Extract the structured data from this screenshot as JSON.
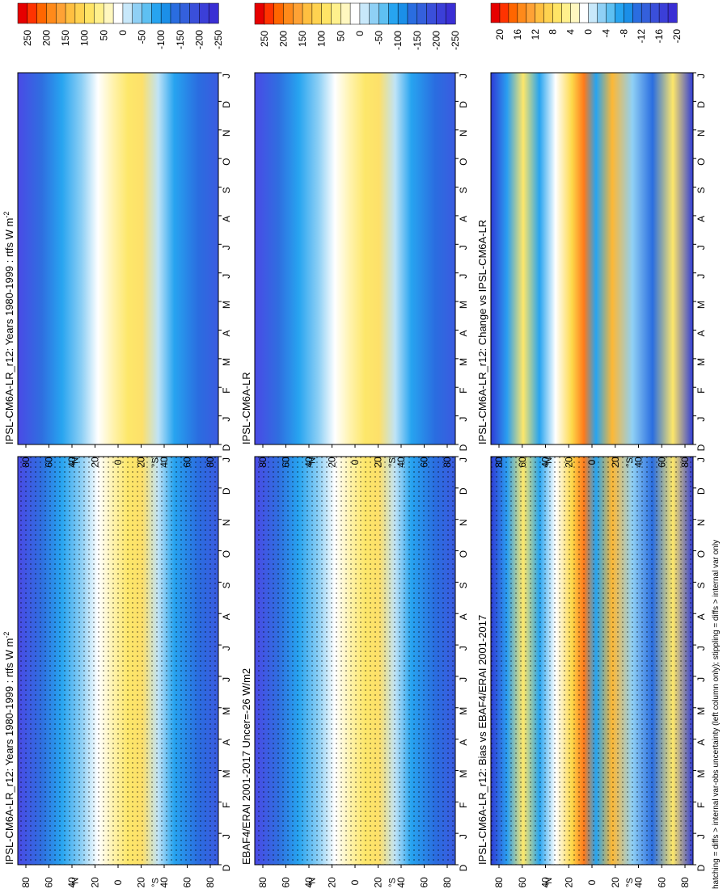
{
  "figure": {
    "footnote": "hatching = diffs > internal var-obs uncertainty (left column only); stippling = diffs > internal var only"
  },
  "chart_data": [
    {
      "type": "heatmap",
      "title": "IPSL-CM6A-LR_r12: Years 1980-1999 : rtfs W m",
      "title_superscript": "-2",
      "months": [
        "D",
        "J",
        "F",
        "M",
        "A",
        "M",
        "J",
        "J",
        "A",
        "S",
        "O",
        "N",
        "D",
        "J"
      ],
      "lat_ticks": [
        "80",
        "60",
        "40",
        "20",
        "0",
        "20",
        "40",
        "60",
        "80"
      ],
      "lat_hemisphere_labels": [
        "°N",
        "°S"
      ],
      "colorbar": {
        "ticks": [
          "250",
          "200",
          "150",
          "100",
          "50",
          "0",
          "-50",
          "-100",
          "-150",
          "-200",
          "-250"
        ],
        "range": [
          -270,
          270
        ]
      },
      "stippled": true,
      "summary_by_latitude": [
        {
          "lat": 80,
          "value": -170
        },
        {
          "lat": 60,
          "value": -120
        },
        {
          "lat": 40,
          "value": -40
        },
        {
          "lat": 20,
          "value": 40
        },
        {
          "lat": 0,
          "value": 60
        },
        {
          "lat": -20,
          "value": 80
        },
        {
          "lat": -40,
          "value": -50
        },
        {
          "lat": -60,
          "value": -120
        },
        {
          "lat": -80,
          "value": -160
        }
      ]
    },
    {
      "type": "heatmap",
      "title": "IPSL-CM6A-LR_r12: Years 1980-1999 : rtfs W m",
      "title_superscript": "-2",
      "months": [
        "D",
        "J",
        "F",
        "M",
        "A",
        "M",
        "J",
        "J",
        "A",
        "S",
        "O",
        "N",
        "D",
        "J"
      ],
      "lat_ticks": [
        "80",
        "60",
        "40",
        "20",
        "0",
        "20",
        "40",
        "60",
        "80"
      ],
      "lat_hemisphere_labels": [
        "°N",
        "°S"
      ],
      "colorbar": {
        "ticks": [
          "250",
          "200",
          "150",
          "100",
          "50",
          "0",
          "-50",
          "-100",
          "-150",
          "-200",
          "-250"
        ],
        "range": [
          -270,
          270
        ]
      },
      "stippled": false
    },
    {
      "type": "heatmap",
      "title": "EBAF4/ERAI 2001-2017 Uncer=-26 W/m2",
      "months": [
        "D",
        "J",
        "F",
        "M",
        "A",
        "M",
        "J",
        "J",
        "A",
        "S",
        "O",
        "N",
        "D",
        "J"
      ],
      "lat_ticks": [
        "80",
        "60",
        "40",
        "20",
        "0",
        "20",
        "40",
        "60",
        "80"
      ],
      "lat_hemisphere_labels": [
        "°N",
        "°S"
      ],
      "colorbar": {
        "ticks": [
          "250",
          "200",
          "150",
          "100",
          "50",
          "0",
          "-50",
          "-100",
          "-150",
          "-200",
          "-250"
        ],
        "range": [
          -270,
          270
        ]
      },
      "stippled": true
    },
    {
      "type": "heatmap",
      "title": "IPSL-CM6A-LR",
      "months": [
        "D",
        "J",
        "F",
        "M",
        "A",
        "M",
        "J",
        "J",
        "A",
        "S",
        "O",
        "N",
        "D",
        "J"
      ],
      "lat_ticks": [
        "80",
        "60",
        "40",
        "20",
        "0",
        "20",
        "40",
        "60",
        "80"
      ],
      "lat_hemisphere_labels": [
        "°N",
        "°S"
      ],
      "colorbar": {
        "ticks": [
          "250",
          "200",
          "150",
          "100",
          "50",
          "0",
          "-50",
          "-100",
          "-150",
          "-200",
          "-250"
        ],
        "range": [
          -270,
          270
        ]
      },
      "stippled": false
    },
    {
      "type": "heatmap",
      "title": "IPSL-CM6A-LR_r12: Bias vs EBAF4/ERAI 2001-2017",
      "months": [
        "D",
        "J",
        "F",
        "M",
        "A",
        "M",
        "J",
        "J",
        "A",
        "S",
        "O",
        "N",
        "D",
        "J"
      ],
      "lat_ticks": [
        "80",
        "60",
        "40",
        "20",
        "0",
        "20",
        "40",
        "60",
        "80"
      ],
      "lat_hemisphere_labels": [
        "°N",
        "°S"
      ],
      "colorbar": {
        "ticks": [
          "20",
          "16",
          "12",
          "8",
          "4",
          "0",
          "-4",
          "-8",
          "-12",
          "-16",
          "-20"
        ],
        "range": [
          -22,
          22
        ]
      },
      "stippled": true
    },
    {
      "type": "heatmap",
      "title": "IPSL-CM6A-LR_r12: Change vs IPSL-CM6A-LR",
      "months": [
        "D",
        "J",
        "F",
        "M",
        "A",
        "M",
        "J",
        "J",
        "A",
        "S",
        "O",
        "N",
        "D",
        "J"
      ],
      "lat_ticks": [
        "80",
        "60",
        "40",
        "20",
        "0",
        "20",
        "40",
        "60",
        "80"
      ],
      "lat_hemisphere_labels": [
        "°N",
        "°S"
      ],
      "colorbar": {
        "ticks": [
          "20",
          "16",
          "12",
          "8",
          "4",
          "0",
          "-4",
          "-8",
          "-12",
          "-16",
          "-20"
        ],
        "range": [
          -22,
          22
        ]
      },
      "stippled": false
    }
  ]
}
